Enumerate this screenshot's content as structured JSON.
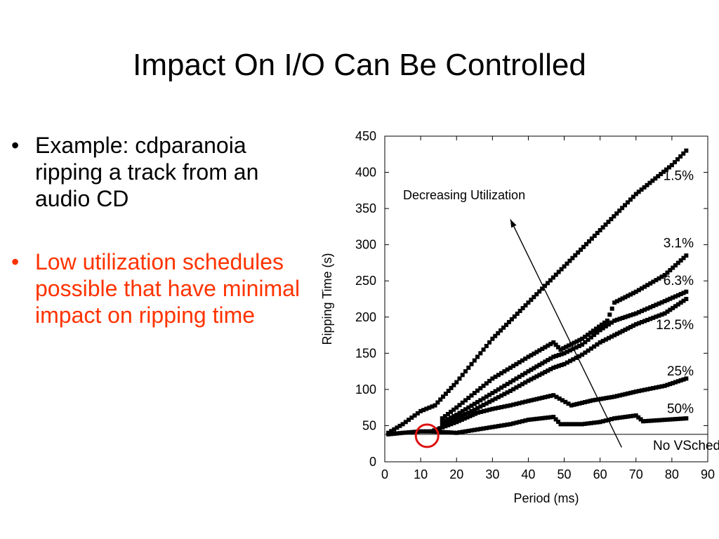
{
  "slide": {
    "title": "Impact On I/O Can Be Controlled",
    "bullets": [
      {
        "text": "Example: cdparanoia ripping a track from an audio CD",
        "color": "#000000"
      },
      {
        "text": "Low utilization schedules possible that have minimal impact on ripping time",
        "color": "#ff3300"
      }
    ]
  },
  "chart_data": {
    "type": "scatter",
    "xlabel": "Period (ms)",
    "ylabel": "Ripping Time (s)",
    "xlim": [
      0,
      90
    ],
    "ylim": [
      0,
      450
    ],
    "xticks": [
      0,
      10,
      20,
      30,
      40,
      50,
      60,
      70,
      80,
      90
    ],
    "yticks": [
      0,
      50,
      100,
      150,
      200,
      250,
      300,
      350,
      400,
      450
    ],
    "grid": false,
    "series": [
      {
        "name": "1.5%",
        "x": [
          1,
          5,
          10,
          14,
          20,
          25,
          30,
          40,
          50,
          60,
          70,
          80,
          84
        ],
        "y": [
          40,
          52,
          70,
          78,
          110,
          140,
          170,
          220,
          270,
          320,
          370,
          410,
          430
        ]
      },
      {
        "name": "3.1%",
        "x": [
          16,
          20,
          25,
          30,
          35,
          40,
          47,
          49,
          55,
          62,
          64,
          70,
          78,
          84
        ],
        "y": [
          60,
          75,
          95,
          115,
          130,
          145,
          165,
          155,
          170,
          195,
          220,
          235,
          258,
          285
        ]
      },
      {
        "name": "6.3%",
        "x": [
          16,
          20,
          25,
          30,
          35,
          40,
          47,
          50,
          55,
          60,
          64,
          70,
          78,
          84
        ],
        "y": [
          55,
          65,
          80,
          95,
          110,
          125,
          145,
          150,
          162,
          182,
          195,
          205,
          222,
          235
        ]
      },
      {
        "name": "12.5%",
        "x": [
          16,
          20,
          25,
          30,
          35,
          40,
          47,
          50,
          55,
          60,
          64,
          70,
          78,
          84
        ],
        "y": [
          50,
          60,
          72,
          85,
          98,
          112,
          130,
          135,
          148,
          165,
          175,
          190,
          205,
          225
        ]
      },
      {
        "name": "25%",
        "x": [
          13,
          20,
          26,
          30,
          35,
          40,
          47,
          52,
          58,
          64,
          70,
          78,
          84
        ],
        "y": [
          42,
          55,
          68,
          73,
          78,
          84,
          92,
          78,
          85,
          90,
          97,
          105,
          115
        ]
      },
      {
        "name": "50%",
        "x": [
          1,
          5,
          10,
          13,
          20,
          25,
          30,
          35,
          40,
          47,
          49,
          55,
          60,
          64,
          70,
          72,
          78,
          84
        ],
        "y": [
          38,
          40,
          42,
          42,
          40,
          44,
          48,
          52,
          58,
          62,
          52,
          52,
          55,
          60,
          64,
          56,
          58,
          60
        ]
      }
    ],
    "baseline": {
      "label": "No VSched",
      "y": 38
    },
    "annotation": {
      "text": "Decreasing Utilization",
      "from_x": 66,
      "from_y": 20,
      "to_x": 35,
      "to_y": 335
    },
    "highlight": {
      "x": 11,
      "y": 38,
      "color": "#dd1111"
    }
  }
}
